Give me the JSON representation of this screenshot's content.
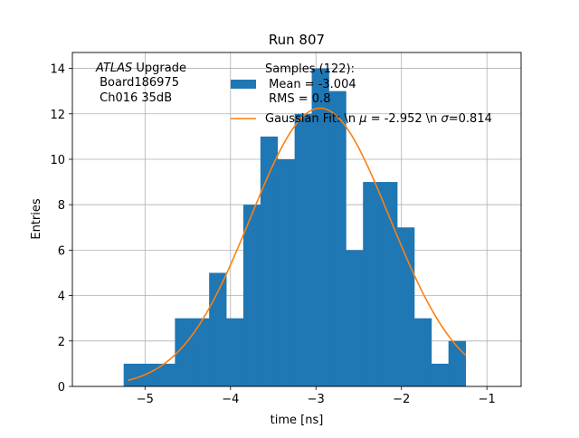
{
  "chart_data": {
    "type": "bar",
    "title": "Run 807",
    "xlabel": "time [ns]",
    "ylabel": "Entries",
    "xlim": [
      -5.85,
      -0.6
    ],
    "ylim": [
      0,
      14.7
    ],
    "xticks": [
      -5,
      -4,
      -3,
      -2,
      -1
    ],
    "xtick_labels": [
      "−5",
      "−4",
      "−3",
      "−2",
      "−1"
    ],
    "yticks": [
      0,
      2,
      4,
      6,
      8,
      10,
      12,
      14
    ],
    "grid": true,
    "histogram": {
      "bin_edges": [
        -5.25,
        -5.05,
        -4.85,
        -4.65,
        -4.45,
        -4.25,
        -4.05,
        -3.85,
        -3.65,
        -3.45,
        -3.25,
        -3.05,
        -2.85,
        -2.65,
        -2.45,
        -2.25,
        -2.05,
        -1.85,
        -1.65,
        -1.45,
        -1.25
      ],
      "counts": [
        1,
        1,
        1,
        3,
        3,
        5,
        3,
        8,
        11,
        10,
        12,
        14,
        13,
        6,
        9,
        9,
        7,
        3,
        1,
        2
      ],
      "color": "#1f77b4"
    },
    "fit": {
      "mu": -2.952,
      "sigma": 0.814,
      "amplitude": 12.25,
      "x_range": [
        -5.2,
        -1.25
      ],
      "color": "#ff7f0e"
    },
    "legend": {
      "location": "top-right",
      "samples_entry": [
        "Samples (122):",
        " Mean = -3.004",
        " RMS = 0.8"
      ],
      "fit_entry": "Gaussian Fit: \\n $\\mu$ = -2.952 \\n $\\sigma$=0.814"
    },
    "annotation": {
      "italic": "ATLAS",
      "line1_rest": " Upgrade",
      "line2": " Board186975",
      "line3": " Ch016 35dB"
    }
  }
}
